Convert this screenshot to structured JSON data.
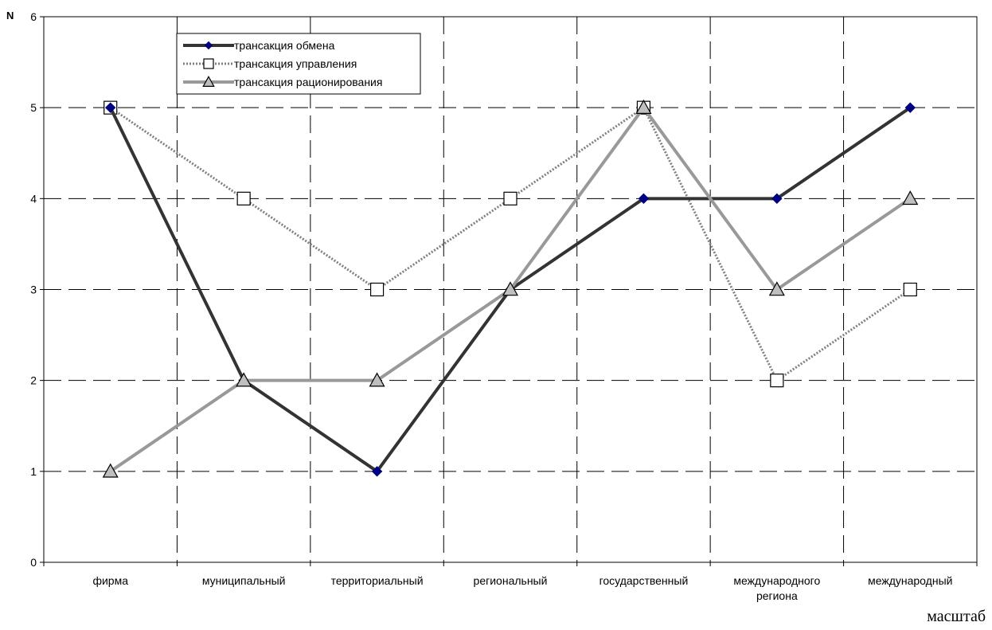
{
  "chart_data": {
    "type": "line",
    "ylabel": "N",
    "xlabel": "масштаб",
    "categories": [
      [
        "фирма"
      ],
      [
        "муниципальный"
      ],
      [
        "территориальный"
      ],
      [
        "региональный"
      ],
      [
        "государственный"
      ],
      [
        "международного",
        "региона"
      ],
      [
        "международный"
      ]
    ],
    "ylim": [
      0,
      6
    ],
    "yticks": [
      0,
      1,
      2,
      3,
      4,
      5,
      6
    ],
    "grid": "dashed both axes",
    "legend_position": "top-left",
    "series": [
      {
        "name": "трансакция обмена",
        "values": [
          5,
          2,
          1,
          3,
          4,
          4,
          5
        ],
        "color": "#333333",
        "marker": "diamond",
        "marker_color": "#000080",
        "line_style": "solid-thick"
      },
      {
        "name": "трансакция управления",
        "values": [
          5,
          4,
          3,
          4,
          5,
          2,
          3
        ],
        "color": "#808080",
        "marker": "square",
        "marker_color": "#ffffff",
        "line_style": "dotted"
      },
      {
        "name": "трансакция рационирования",
        "values": [
          1,
          2,
          2,
          3,
          5,
          3,
          4
        ],
        "color": "#999999",
        "marker": "triangle",
        "marker_color": "#bfbfbf",
        "line_style": "solid-thick"
      }
    ]
  }
}
